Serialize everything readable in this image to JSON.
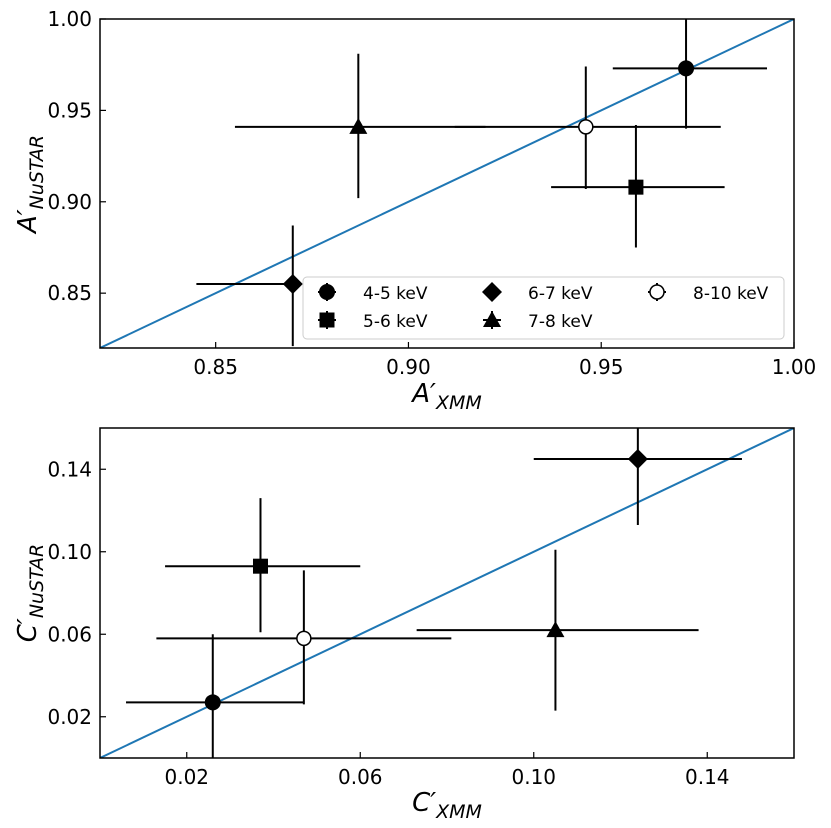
{
  "chart_data": [
    {
      "type": "scatter",
      "xlabel": "A′",
      "xlabel_sub": "XMM",
      "ylabel": "A′",
      "ylabel_sub": "NuSTAR",
      "xlim": [
        0.82,
        1.0
      ],
      "ylim": [
        0.82,
        1.0
      ],
      "xticks": [
        0.85,
        0.9,
        0.95,
        1.0
      ],
      "xtick_labels": [
        "0.85",
        "0.90",
        "0.95",
        "1.00"
      ],
      "yticks": [
        0.85,
        0.9,
        0.95,
        1.0
      ],
      "ytick_labels": [
        "0.85",
        "0.90",
        "0.95",
        "1.00"
      ],
      "identity_line": true,
      "identity_color": "#1f77b4",
      "legend_position": "lower-right",
      "series": [
        {
          "name": "4-5 keV",
          "marker": "circle",
          "x": 0.972,
          "xerr": [
            0.019,
            0.021
          ],
          "y": 0.973,
          "yerr": [
            0.033,
            0.027
          ]
        },
        {
          "name": "5-6 keV",
          "marker": "square",
          "x": 0.959,
          "xerr": [
            0.022,
            0.023
          ],
          "y": 0.908,
          "yerr": [
            0.033,
            0.034
          ]
        },
        {
          "name": "6-7 keV",
          "marker": "diamond",
          "x": 0.87,
          "xerr": [
            0.025,
            0.0
          ],
          "y": 0.855,
          "yerr": [
            0.034,
            0.032
          ]
        },
        {
          "name": "7-8 keV",
          "marker": "triangle",
          "x": 0.887,
          "xerr": [
            0.032,
            0.033
          ],
          "y": 0.941,
          "yerr": [
            0.039,
            0.04
          ]
        },
        {
          "name": "8-10 keV",
          "marker": "open-circle",
          "x": 0.946,
          "xerr": [
            0.034,
            0.035
          ],
          "y": 0.941,
          "yerr": [
            0.034,
            0.033
          ]
        }
      ]
    },
    {
      "type": "scatter",
      "xlabel": "C′",
      "xlabel_sub": "XMM",
      "ylabel": "C′",
      "ylabel_sub": "NuSTAR",
      "xlim": [
        0.0,
        0.16
      ],
      "ylim": [
        0.0,
        0.16
      ],
      "xticks": [
        0.02,
        0.06,
        0.1,
        0.14
      ],
      "xtick_labels": [
        "0.02",
        "0.06",
        "0.10",
        "0.14"
      ],
      "yticks": [
        0.02,
        0.06,
        0.1,
        0.14
      ],
      "ytick_labels": [
        "0.02",
        "0.06",
        "0.10",
        "0.14"
      ],
      "identity_line": true,
      "identity_color": "#1f77b4",
      "series": [
        {
          "name": "4-5 keV",
          "marker": "circle",
          "x": 0.026,
          "xerr": [
            0.02,
            0.021
          ],
          "y": 0.027,
          "yerr": [
            0.03,
            0.033
          ]
        },
        {
          "name": "5-6 keV",
          "marker": "square",
          "x": 0.037,
          "xerr": [
            0.022,
            0.023
          ],
          "y": 0.093,
          "yerr": [
            0.032,
            0.033
          ]
        },
        {
          "name": "6-7 keV",
          "marker": "diamond",
          "x": 0.124,
          "xerr": [
            0.024,
            0.024
          ],
          "y": 0.145,
          "yerr": [
            0.032,
            0.016
          ]
        },
        {
          "name": "7-8 keV",
          "marker": "triangle",
          "x": 0.105,
          "xerr": [
            0.032,
            0.033
          ],
          "y": 0.062,
          "yerr": [
            0.039,
            0.039
          ]
        },
        {
          "name": "8-10 keV",
          "marker": "open-circle",
          "x": 0.047,
          "xerr": [
            0.034,
            0.034
          ],
          "y": 0.058,
          "yerr": [
            0.032,
            0.033
          ]
        }
      ]
    }
  ]
}
